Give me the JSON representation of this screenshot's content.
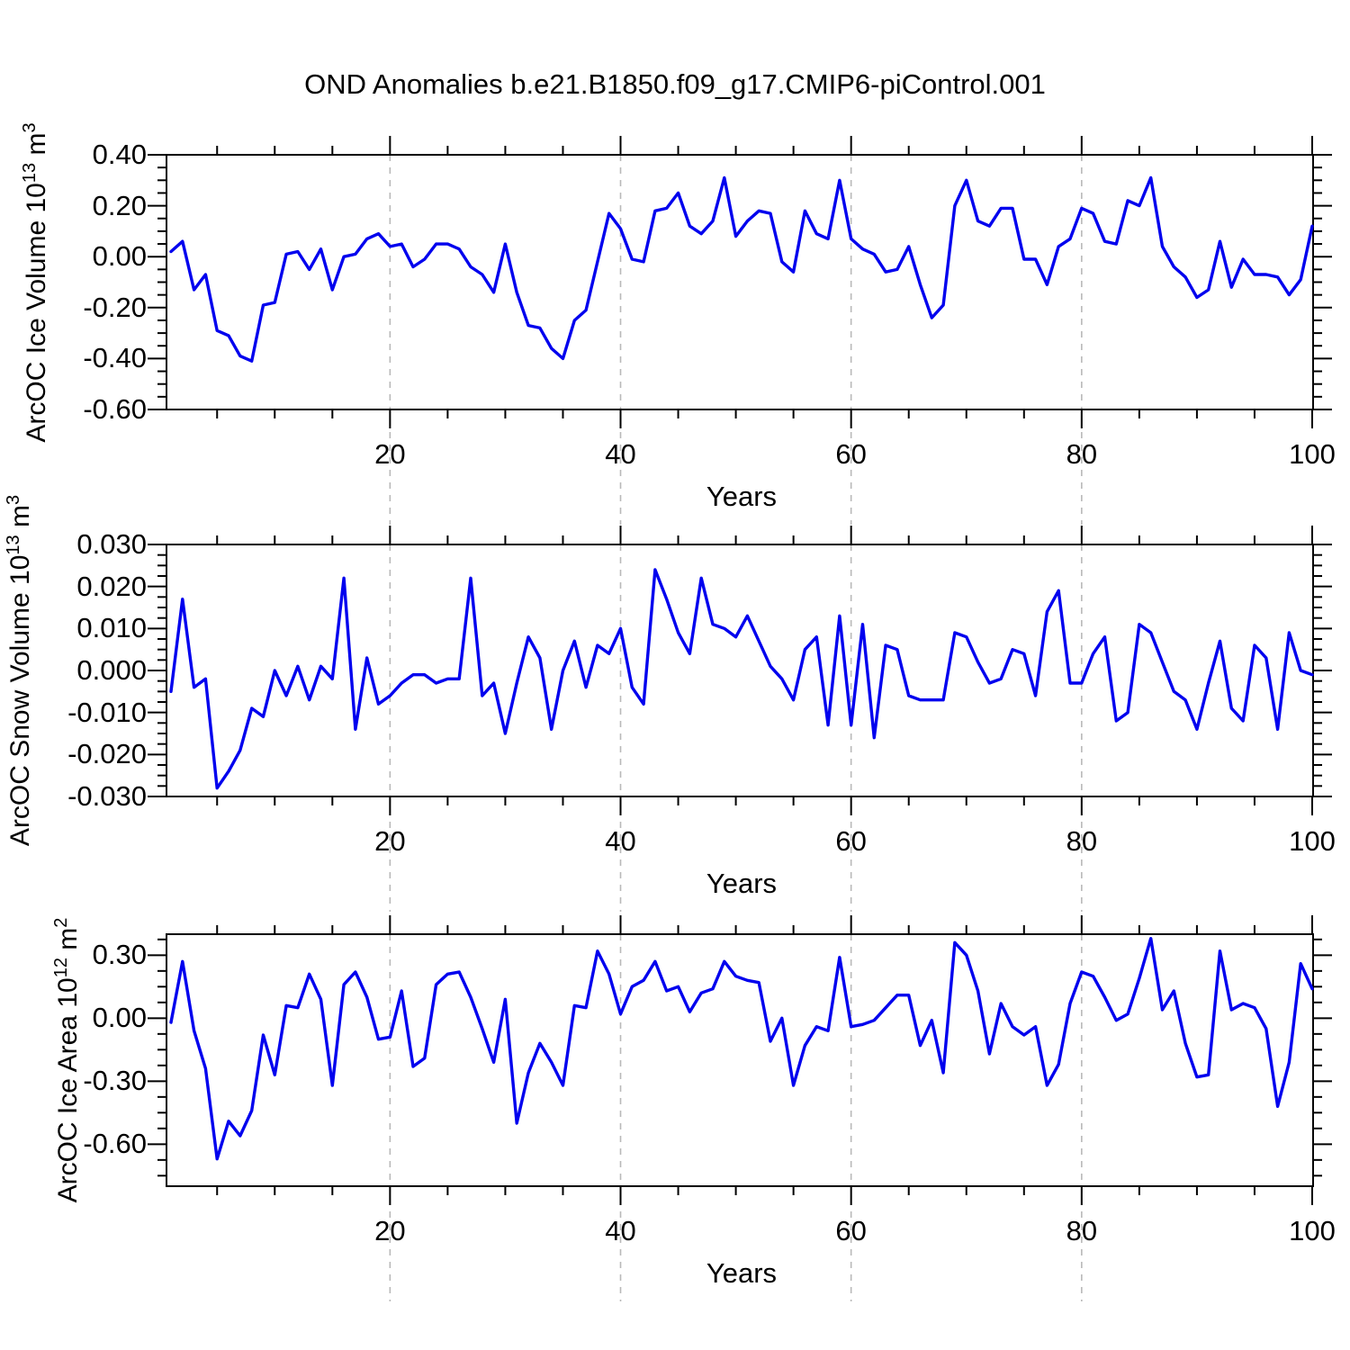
{
  "title": "OND Anomalies b.e21.B1850.f09_g17.CMIP6-piControl.001",
  "colors": {
    "line": "#0000ee",
    "grid": "#b9b9b9",
    "axis": "#000000",
    "background": "#ffffff"
  },
  "years": [
    1,
    2,
    3,
    4,
    5,
    6,
    7,
    8,
    9,
    10,
    11,
    12,
    13,
    14,
    15,
    16,
    17,
    18,
    19,
    20,
    21,
    22,
    23,
    24,
    25,
    26,
    27,
    28,
    29,
    30,
    31,
    32,
    33,
    34,
    35,
    36,
    37,
    38,
    39,
    40,
    41,
    42,
    43,
    44,
    45,
    46,
    47,
    48,
    49,
    50,
    51,
    52,
    53,
    54,
    55,
    56,
    57,
    58,
    59,
    60,
    61,
    62,
    63,
    64,
    65,
    66,
    67,
    68,
    69,
    70,
    71,
    72,
    73,
    74,
    75,
    76,
    77,
    78,
    79,
    80,
    81,
    82,
    83,
    84,
    85,
    86,
    87,
    88,
    89,
    90,
    91,
    92,
    93,
    94,
    95,
    96,
    97,
    98,
    99,
    100
  ],
  "chart_data": [
    {
      "type": "line",
      "title": "",
      "xlabel": "Years",
      "ylabel_rich": [
        {
          "t": "ArcOC Ice Volume 10"
        },
        {
          "sup": "13"
        },
        {
          "t": " m"
        },
        {
          "sup": "3"
        }
      ],
      "xlim": [
        1,
        100
      ],
      "ylim": [
        -0.6,
        0.4
      ],
      "xticks": [
        20,
        40,
        60,
        80,
        100
      ],
      "xtick_labels": [
        "20",
        "40",
        "60",
        "80",
        "100"
      ],
      "xminor_step": 5,
      "grid_x": [
        20,
        40,
        60,
        80
      ],
      "yticks": [
        0.4,
        0.2,
        0.0,
        -0.2,
        -0.4,
        -0.6
      ],
      "ytick_labels": [
        "0.40",
        "0.20",
        "0.00",
        "-0.20",
        "-0.40",
        "-0.60"
      ],
      "yminor_step": 0.05,
      "legend": "none",
      "grid": "vertical-dashed",
      "values": [
        0.02,
        0.06,
        -0.13,
        -0.07,
        -0.29,
        -0.31,
        -0.39,
        -0.41,
        -0.19,
        -0.18,
        0.01,
        0.02,
        -0.05,
        0.03,
        -0.13,
        0.0,
        0.01,
        0.07,
        0.09,
        0.04,
        0.05,
        -0.04,
        -0.01,
        0.05,
        0.05,
        0.03,
        -0.04,
        -0.07,
        -0.14,
        0.05,
        -0.14,
        -0.27,
        -0.28,
        -0.36,
        -0.4,
        -0.25,
        -0.21,
        -0.02,
        0.17,
        0.11,
        -0.01,
        -0.02,
        0.18,
        0.19,
        0.25,
        0.12,
        0.09,
        0.14,
        0.31,
        0.08,
        0.14,
        0.18,
        0.17,
        -0.02,
        -0.06,
        0.18,
        0.09,
        0.07,
        0.3,
        0.07,
        0.03,
        0.01,
        -0.06,
        -0.05,
        0.04,
        -0.11,
        -0.24,
        -0.19,
        0.2,
        0.3,
        0.14,
        0.12,
        0.19,
        0.19,
        -0.01,
        -0.01,
        -0.11,
        0.04,
        0.07,
        0.19,
        0.17,
        0.06,
        0.05,
        0.22,
        0.2,
        0.31,
        0.04,
        -0.04,
        -0.08,
        -0.16,
        -0.13,
        0.06,
        -0.12,
        -0.01,
        -0.07,
        -0.07,
        -0.08,
        -0.15,
        -0.09,
        0.12
      ]
    },
    {
      "type": "line",
      "title": "",
      "xlabel": "Years",
      "ylabel_rich": [
        {
          "t": "ArcOC Snow Volume 10"
        },
        {
          "sup": "13"
        },
        {
          "t": " m"
        },
        {
          "sup": "3"
        }
      ],
      "xlim": [
        1,
        100
      ],
      "ylim": [
        -0.03,
        0.03
      ],
      "xticks": [
        20,
        40,
        60,
        80,
        100
      ],
      "xtick_labels": [
        "20",
        "40",
        "60",
        "80",
        "100"
      ],
      "xminor_step": 5,
      "grid_x": [
        20,
        40,
        60,
        80
      ],
      "yticks": [
        0.03,
        0.02,
        0.01,
        0.0,
        -0.01,
        -0.02,
        -0.03
      ],
      "ytick_labels": [
        "0.030",
        "0.020",
        "0.010",
        "0.000",
        "-0.010",
        "-0.020",
        "-0.030"
      ],
      "yminor_step": 0.0025,
      "legend": "none",
      "grid": "vertical-dashed",
      "values": [
        -0.005,
        0.017,
        -0.004,
        -0.002,
        -0.028,
        -0.024,
        -0.019,
        -0.009,
        -0.011,
        0.0,
        -0.006,
        0.001,
        -0.007,
        0.001,
        -0.002,
        0.022,
        -0.014,
        0.003,
        -0.008,
        -0.006,
        -0.003,
        -0.001,
        -0.001,
        -0.003,
        -0.002,
        -0.002,
        0.022,
        -0.006,
        -0.003,
        -0.015,
        -0.003,
        0.008,
        0.003,
        -0.014,
        0.0,
        0.007,
        -0.004,
        0.006,
        0.004,
        0.01,
        -0.004,
        -0.008,
        0.024,
        0.017,
        0.009,
        0.004,
        0.022,
        0.011,
        0.01,
        0.008,
        0.013,
        0.007,
        0.001,
        -0.002,
        -0.007,
        0.005,
        0.008,
        -0.013,
        0.013,
        -0.013,
        0.011,
        -0.016,
        0.006,
        0.005,
        -0.006,
        -0.007,
        -0.007,
        -0.007,
        0.009,
        0.008,
        0.002,
        -0.003,
        -0.002,
        0.005,
        0.004,
        -0.006,
        0.014,
        0.019,
        -0.003,
        -0.003,
        0.004,
        0.008,
        -0.012,
        -0.01,
        0.011,
        0.009,
        0.002,
        -0.005,
        -0.007,
        -0.014,
        -0.003,
        0.007,
        -0.009,
        -0.012,
        0.006,
        0.003,
        -0.014,
        0.009,
        0.0,
        -0.001
      ]
    },
    {
      "type": "line",
      "title": "",
      "xlabel": "Years",
      "ylabel_rich": [
        {
          "t": "ArcOC Ice Area 10"
        },
        {
          "sup": "12"
        },
        {
          "t": " m"
        },
        {
          "sup": "2"
        }
      ],
      "xlim": [
        1,
        100
      ],
      "ylim": [
        -0.8,
        0.4
      ],
      "xticks": [
        20,
        40,
        60,
        80,
        100
      ],
      "xtick_labels": [
        "20",
        "40",
        "60",
        "80",
        "100"
      ],
      "xminor_step": 5,
      "grid_x": [
        20,
        40,
        60,
        80
      ],
      "yticks": [
        0.3,
        0.0,
        -0.3,
        -0.6
      ],
      "ytick_labels": [
        "0.30",
        "0.00",
        "-0.30",
        "-0.60"
      ],
      "yminor_step": 0.075,
      "legend": "none",
      "grid": "vertical-dashed",
      "values": [
        -0.02,
        0.27,
        -0.06,
        -0.24,
        -0.67,
        -0.49,
        -0.56,
        -0.44,
        -0.08,
        -0.27,
        0.06,
        0.05,
        0.21,
        0.09,
        -0.32,
        0.16,
        0.22,
        0.1,
        -0.1,
        -0.09,
        0.13,
        -0.23,
        -0.19,
        0.16,
        0.21,
        0.22,
        0.1,
        -0.05,
        -0.21,
        0.09,
        -0.5,
        -0.26,
        -0.12,
        -0.21,
        -0.32,
        0.06,
        0.05,
        0.32,
        0.21,
        0.02,
        0.15,
        0.18,
        0.27,
        0.13,
        0.15,
        0.03,
        0.12,
        0.14,
        0.27,
        0.2,
        0.18,
        0.17,
        -0.11,
        0.0,
        -0.32,
        -0.13,
        -0.04,
        -0.06,
        0.29,
        -0.04,
        -0.03,
        -0.01,
        0.05,
        0.11,
        0.11,
        -0.13,
        -0.01,
        -0.26,
        0.36,
        0.3,
        0.13,
        -0.17,
        0.07,
        -0.04,
        -0.08,
        -0.04,
        -0.32,
        -0.22,
        0.07,
        0.22,
        0.2,
        0.1,
        -0.01,
        0.02,
        0.19,
        0.38,
        0.04,
        0.13,
        -0.12,
        -0.28,
        -0.27,
        0.32,
        0.04,
        0.07,
        0.05,
        -0.05,
        -0.42,
        -0.21,
        0.26,
        0.14
      ]
    }
  ]
}
